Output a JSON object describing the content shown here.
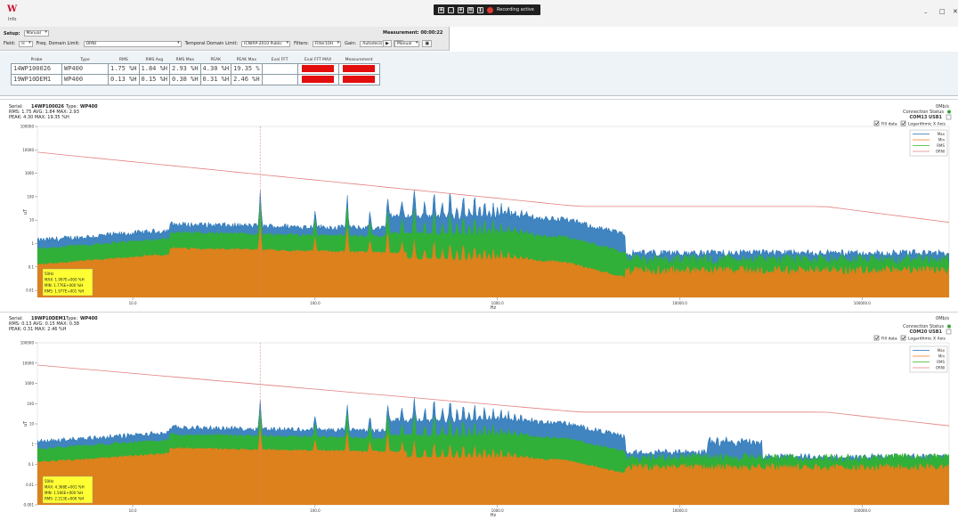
{
  "app": {
    "menu_label": "Info"
  },
  "recording": {
    "text": "Recording active"
  },
  "window": {
    "minimize": "–",
    "maximize": "□",
    "close": "✕"
  },
  "toolbar": {
    "setup_label": "Setup:",
    "setup_value": "Manual",
    "field_label": "Field:",
    "field_value": "H",
    "freq_limit_label": "Freq. Domain Limit:",
    "freq_limit_value": "ORNI",
    "temporal_limit_label": "Temporal Domain Limit:",
    "temporal_limit_value": "ICNIRP-2010 Public",
    "filters_label": "Filters:",
    "filters_value": "Filter10H",
    "gain_label": "Gain:",
    "gain_value": "Autodecis",
    "measurement_label": "Measurement:",
    "measurement_time": "00:00:22",
    "mode_value": "Manual",
    "play_icon": "▶"
  },
  "probes": {
    "headers": [
      "Probe",
      "Type",
      "RMS",
      "RMS Avg",
      "RMS Max",
      "PEAK",
      "PEAK Max",
      "Eval FFT",
      "Eval FFT MAX",
      "Measurement"
    ],
    "rows": [
      {
        "probe": "14WP100026",
        "type": "WP400",
        "rms": "1.75 %H",
        "rms_avg": "1.84 %H",
        "rms_max": "2.93 %H",
        "peak": "4.30 %H",
        "peak_max": "19.35 %",
        "eval_fft": ""
      },
      {
        "probe": "19WP10DEM1",
        "type": "WP400",
        "rms": "0.13 %H",
        "rms_avg": "0.15 %H",
        "rms_max": "0.38 %H",
        "peak": "0.31 %H",
        "peak_max": "2.46 %H",
        "eval_fft": ""
      }
    ]
  },
  "charts": [
    {
      "serial_label": "Serial:",
      "serial": "14WP100026",
      "type_label": "Type:",
      "type": "WP400",
      "line2": "RMS: 1.75  AVG: 1.84  MAX: 2.93",
      "line3": "PEAK: 4.30  MAX: 19.35  %H",
      "rate": "0Mb/s",
      "connection": "Connection Status",
      "port": "COM13 USB1",
      "fill_label": "Fill data",
      "log_label": "Logarithmic X Axis",
      "legend": [
        "Max",
        "Min",
        "RMS",
        "ORNI"
      ],
      "ylabel": "uT",
      "xlabel": "Hz",
      "cursor": [
        "50Hz",
        "MAX: 1.997E+000 %H",
        "MIN: 1.776E+000 %H",
        "RMS: 1.977E+001 %H"
      ],
      "yticks": [
        "100000",
        "10000",
        "1000",
        "100",
        "10",
        "1",
        "0.1",
        "0.01"
      ],
      "xticks": [
        "10.0",
        "100.0",
        "1000.0",
        "10000.0",
        "100000.0"
      ]
    },
    {
      "serial_label": "Serial:",
      "serial": "19WP10DEM1",
      "type_label": "Type:",
      "type": "WP400",
      "line2": "RMS: 0.13  AVG: 0.15  MAX: 0.38",
      "line3": "PEAK: 0.31  MAX: 2.46  %H",
      "rate": "0Mb/s",
      "connection": "Connection Status",
      "port": "COM20 USB1",
      "fill_label": "Fill data",
      "log_label": "Logarithmic X Axis",
      "legend": [
        "Max",
        "Min",
        "RMS",
        "ORNI"
      ],
      "ylabel": "uT",
      "xlabel": "Hz",
      "cursor": [
        "50Hz",
        "MAX: 4.368E+001 %H",
        "MIN: 1.566E+000 %H",
        "RMS: 2.213E+000 %H"
      ],
      "yticks": [
        "100000",
        "10000",
        "1000",
        "100",
        "10",
        "1",
        "0.1",
        "0.01",
        "0.001"
      ],
      "xticks": [
        "10.0",
        "100.0",
        "1000.0",
        "10000.0",
        "100000.0"
      ]
    }
  ],
  "colors": {
    "max": "#1f6fb5",
    "min": "#f07c1a",
    "rms": "#2fb52a",
    "orni": "#e27f7f",
    "cursor_bg": "#ffff33",
    "alarm": "#e40d0d"
  }
}
